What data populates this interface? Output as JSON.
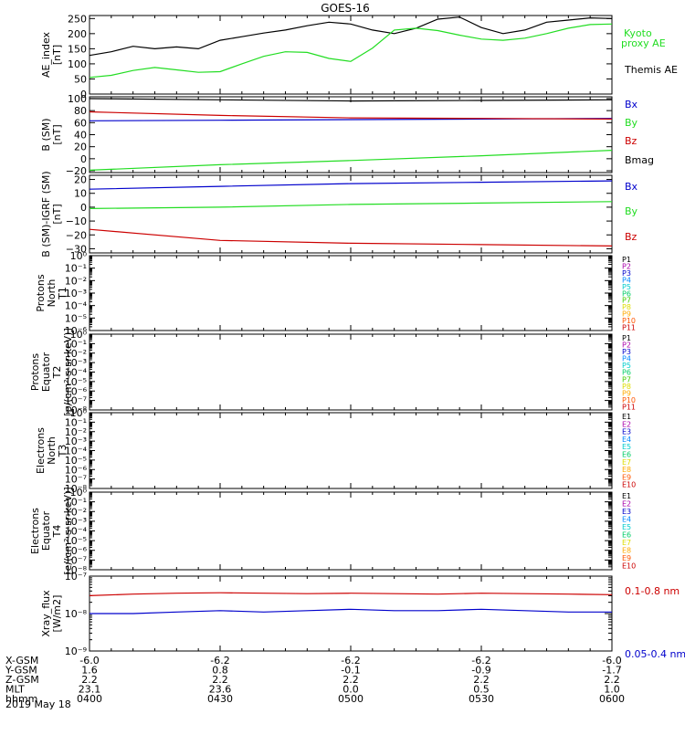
{
  "title": "GOES-16",
  "colors": {
    "black": "#000000",
    "green": "#22dd22",
    "blue": "#0000cc",
    "red": "#cc0000",
    "pcolors": [
      "#000000",
      "#aa00aa",
      "#0000cc",
      "#0088ff",
      "#00cccc",
      "#00cc66",
      "#44cc00",
      "#dddd00",
      "#ffaa00",
      "#ff5500",
      "#cc0000"
    ],
    "ecolors": [
      "#000000",
      "#aa00aa",
      "#0000cc",
      "#0088ff",
      "#00cccc",
      "#00cc66",
      "#dddd00",
      "#ffaa00",
      "#ff5500",
      "#cc0000"
    ]
  },
  "orbit": {
    "rows": [
      {
        "label": "X-GSM",
        "values": [
          "-6.0",
          "-6.2",
          "-6.2",
          "-6.2",
          "-6.0"
        ]
      },
      {
        "label": "Y-GSM",
        "values": [
          "1.6",
          "0.8",
          "-0.1",
          "-0.9",
          "-1.7"
        ]
      },
      {
        "label": "Z-GSM",
        "values": [
          "2.2",
          "2.2",
          "2.2",
          "2.2",
          "2.2"
        ]
      },
      {
        "label": "MLT",
        "values": [
          "23.1",
          "23.6",
          "0.0",
          "0.5",
          "1.0"
        ]
      },
      {
        "label": "hhmm",
        "values": [
          "0400",
          "0430",
          "0500",
          "0530",
          "0600"
        ]
      }
    ],
    "date": "2019 May 18"
  },
  "chart_data": [
    {
      "type": "line",
      "ylabel": "AE_index [nT]",
      "ylim": [
        0,
        260
      ],
      "yticks": [
        "0",
        "50",
        "100",
        "150",
        "200",
        "250"
      ],
      "x": [
        0,
        5,
        10,
        15,
        20,
        25,
        30,
        35,
        40,
        45,
        50,
        55,
        60,
        65,
        70,
        75,
        80,
        85,
        90,
        95,
        100,
        105,
        110,
        115,
        120
      ],
      "series": [
        {
          "name": "Themis AE",
          "color": "#000000",
          "values": [
            128,
            140,
            158,
            150,
            156,
            150,
            178,
            190,
            202,
            212,
            226,
            238,
            232,
            212,
            200,
            218,
            248,
            255,
            220,
            200,
            212,
            238,
            245,
            252,
            250
          ]
        },
        {
          "name": "Kyoto proxy AE",
          "color": "#22dd22",
          "values": [
            55,
            62,
            78,
            88,
            80,
            72,
            74,
            100,
            125,
            140,
            138,
            118,
            108,
            152,
            212,
            218,
            210,
            195,
            182,
            178,
            185,
            200,
            218,
            230,
            232
          ]
        }
      ]
    },
    {
      "type": "line",
      "ylabel": "B (SM) [nT]",
      "ylim": [
        -23,
        103
      ],
      "yticks": [
        "−20",
        "0",
        "20",
        "40",
        "60",
        "80",
        "100"
      ],
      "x": [
        0,
        30,
        60,
        90,
        120
      ],
      "series": [
        {
          "name": "Bx",
          "color": "#0000cc",
          "values": [
            63,
            64,
            65,
            66,
            67
          ]
        },
        {
          "name": "By",
          "color": "#22dd22",
          "values": [
            -19,
            -10,
            -3,
            5,
            14
          ]
        },
        {
          "name": "Bz",
          "color": "#cc0000",
          "values": [
            78,
            72,
            68,
            67,
            66
          ]
        },
        {
          "name": "Bmag",
          "color": "#000000",
          "values": [
            100,
            98,
            96,
            97,
            98
          ]
        }
      ]
    },
    {
      "type": "line",
      "ylabel": "B (SM)-IGRF (SM) [nT]",
      "ylim": [
        -33,
        23
      ],
      "yticks": [
        "−30",
        "−20",
        "−10",
        "0",
        "10",
        "20"
      ],
      "x": [
        0,
        30,
        60,
        90,
        120
      ],
      "series": [
        {
          "name": "Bx",
          "color": "#0000cc",
          "values": [
            13,
            15,
            17,
            18,
            19
          ]
        },
        {
          "name": "By",
          "color": "#22dd22",
          "values": [
            -1,
            0,
            2,
            3,
            4
          ]
        },
        {
          "name": "Bz",
          "color": "#cc0000",
          "values": [
            -16,
            -24,
            -26,
            -27,
            -28
          ]
        }
      ]
    },
    {
      "type": "line",
      "ylabel": "Protons North T1",
      "log": true,
      "yticks": [
        "10⁰",
        "10⁻¹",
        "10⁻²",
        "10⁻³",
        "10⁻⁴",
        "10⁻⁵",
        "10⁻⁶"
      ],
      "legend": [
        "P1",
        "P2",
        "P3",
        "P4",
        "P5",
        "P6",
        "P7",
        "P8",
        "P9",
        "P10",
        "P11"
      ]
    },
    {
      "type": "line",
      "ylabel": "Protons Equator T2 [p/(cm²-s-sr-keV)]",
      "log": true,
      "yticks": [
        "10⁰",
        "10⁻¹",
        "10⁻²",
        "10⁻³",
        "10⁻⁴",
        "10⁻⁵",
        "10⁻⁶",
        "10⁻⁷",
        "10⁻⁸"
      ],
      "legend": [
        "P1",
        "P2",
        "P3",
        "P4",
        "P5",
        "P6",
        "P7",
        "P8",
        "P9",
        "P10",
        "P11"
      ]
    },
    {
      "type": "line",
      "ylabel": "Electrons North T3",
      "log": true,
      "yticks": [
        "10⁰",
        "10⁻¹",
        "10⁻²",
        "10⁻³",
        "10⁻⁴",
        "10⁻⁵",
        "10⁻⁶",
        "10⁻⁷",
        "10⁻⁸"
      ],
      "legend": [
        "E1",
        "E2",
        "E3",
        "E4",
        "E5",
        "E6",
        "E7",
        "E8",
        "E9",
        "E10"
      ]
    },
    {
      "type": "line",
      "ylabel": "Electrons Equator T4 [e/(cm²-s-sr-keV)]",
      "log": true,
      "yticks": [
        "10⁰",
        "10⁻¹",
        "10⁻²",
        "10⁻³",
        "10⁻⁴",
        "10⁻⁵",
        "10⁻⁶",
        "10⁻⁷",
        "10⁻⁸"
      ],
      "legend": [
        "E1",
        "E2",
        "E3",
        "E4",
        "E5",
        "E6",
        "E7",
        "E8",
        "E9",
        "E10"
      ]
    },
    {
      "type": "line",
      "ylabel": "Xray_flux [W/m2]",
      "log": true,
      "yticks": [
        "10⁻⁷",
        "10⁻⁸",
        "10⁻⁹"
      ],
      "x": [
        0,
        10,
        20,
        30,
        40,
        50,
        60,
        70,
        80,
        90,
        100,
        110,
        120
      ],
      "series": [
        {
          "name": "0.1-0.8 nm",
          "color": "#cc0000",
          "values": [
            3e-08,
            3.3e-08,
            3.5e-08,
            3.6e-08,
            3.5e-08,
            3.4e-08,
            3.5e-08,
            3.4e-08,
            3.3e-08,
            3.5e-08,
            3.4e-08,
            3.3e-08,
            3.2e-08
          ]
        },
        {
          "name": "0.05-0.4 nm",
          "color": "#0000cc",
          "values": [
            1e-08,
            1e-08,
            1.1e-08,
            1.2e-08,
            1.1e-08,
            1.2e-08,
            1.3e-08,
            1.2e-08,
            1.2e-08,
            1.3e-08,
            1.2e-08,
            1.1e-08,
            1.1e-08
          ]
        }
      ]
    }
  ]
}
